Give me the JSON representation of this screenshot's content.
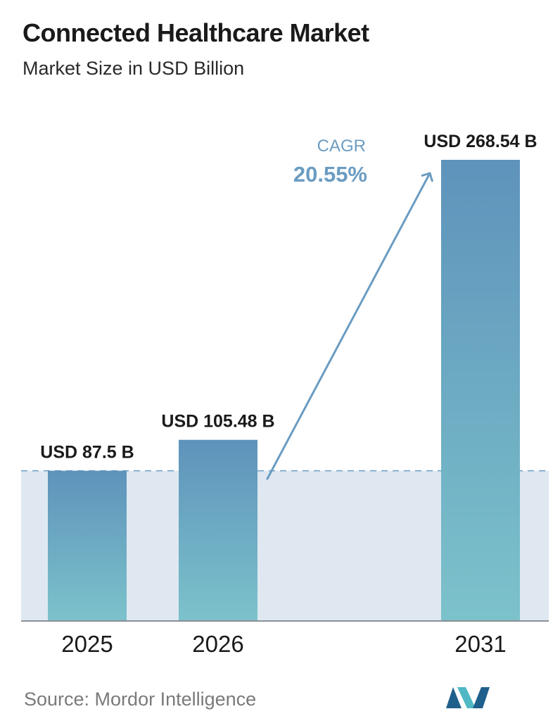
{
  "header": {
    "title": "Connected Healthcare Market",
    "subtitle": "Market Size in USD Billion"
  },
  "chart_data": {
    "type": "bar",
    "categories": [
      "2025",
      "2026",
      "2031"
    ],
    "values": [
      87.5,
      105.48,
      268.54
    ],
    "value_labels": [
      "USD 87.5 B",
      "USD 105.48 B",
      "USD 268.54 B"
    ],
    "ylim": [
      0,
      268.54
    ],
    "grid": false,
    "reference_line_value": 87.5,
    "annotation": {
      "label": "CAGR",
      "value": "20.55%"
    }
  },
  "footer": {
    "source": "Source:  Mordor Intelligence"
  },
  "colors": {
    "bar_top": "#5e93bb",
    "bar_bottom": "#7cc2cb",
    "band": "#dfe8f1",
    "accent": "#6b9cc2",
    "axis": "#8a8f96",
    "logo_dark": "#1f5f8b",
    "logo_light": "#4fb8c4"
  }
}
